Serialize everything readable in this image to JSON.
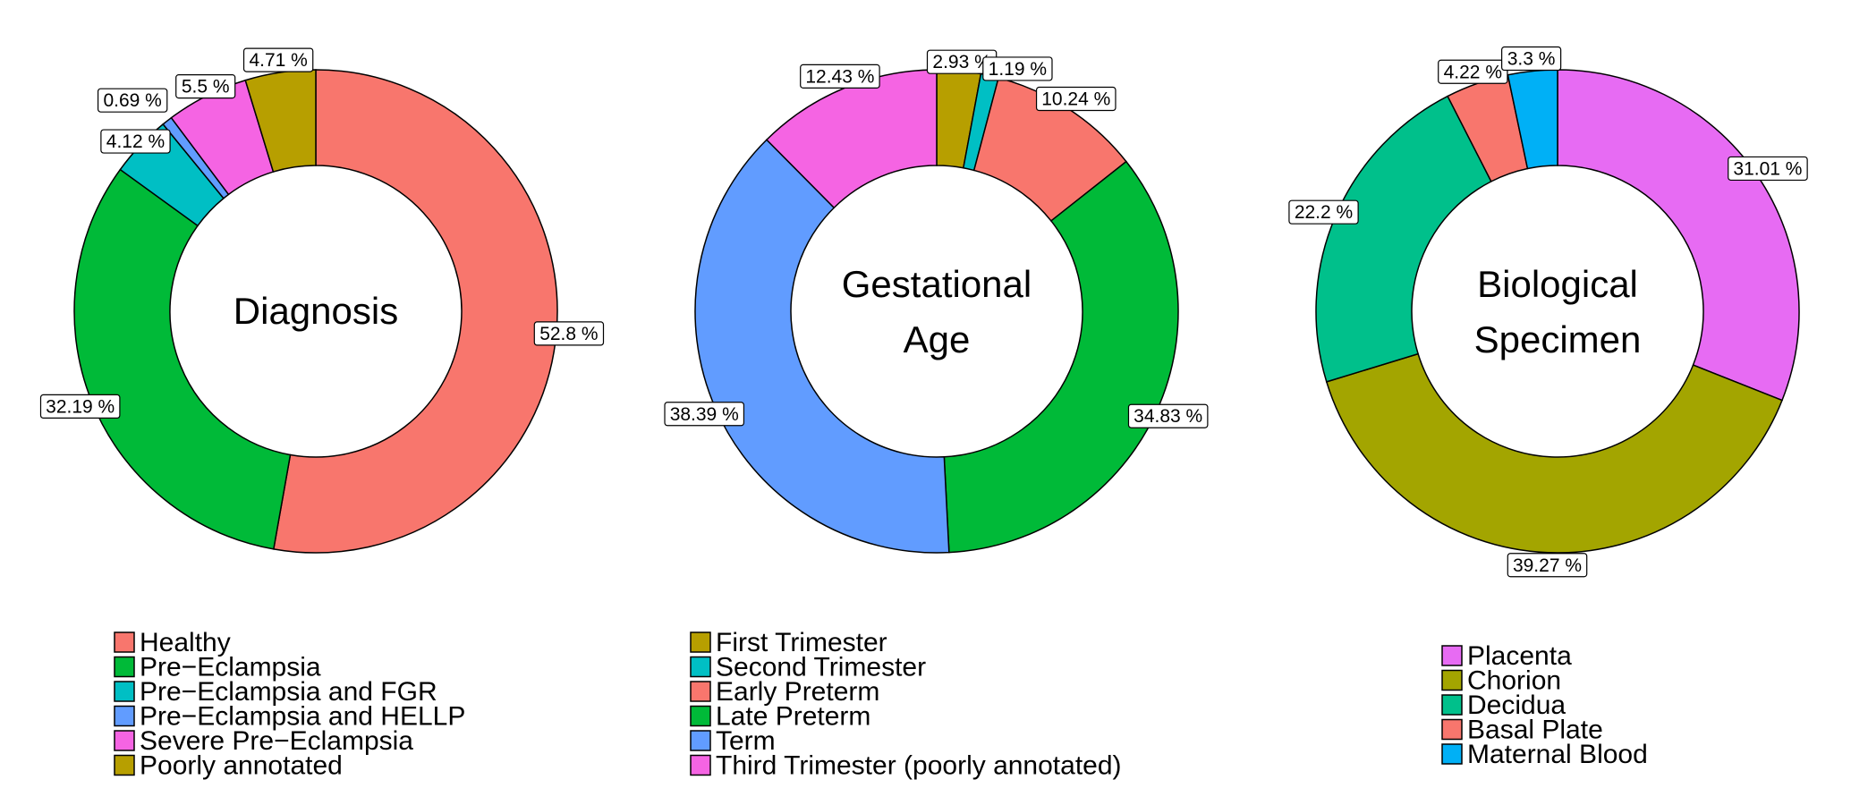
{
  "chart_data": [
    {
      "type": "pie",
      "title": "Diagnosis",
      "title_lines": [
        "Diagnosis"
      ],
      "slices": [
        {
          "label": "Healthy",
          "value": 52.8,
          "label_text": "52.8 %",
          "color": "#F8766D"
        },
        {
          "label": "Pre−Eclampsia",
          "value": 32.19,
          "label_text": "32.19 %",
          "color": "#00BA38"
        },
        {
          "label": "Pre−Eclampsia and FGR",
          "value": 4.12,
          "label_text": "4.12 %",
          "color": "#00BFC4"
        },
        {
          "label": "Pre−Eclampsia and HELLP",
          "value": 0.69,
          "label_text": "0.69 %",
          "color": "#619CFF"
        },
        {
          "label": "Severe Pre−Eclampsia",
          "value": 5.5,
          "label_text": "5.5 %",
          "color": "#F564E3"
        },
        {
          "label": "Poorly annotated",
          "value": 4.71,
          "label_text": "4.71 %",
          "color": "#B79F00"
        }
      ]
    },
    {
      "type": "pie",
      "title": "Gestational Age",
      "title_lines": [
        "Gestational",
        "Age"
      ],
      "slices": [
        {
          "label": "First Trimester",
          "value": 2.93,
          "label_text": "2.93 %",
          "color": "#B79F00"
        },
        {
          "label": "Second Trimester",
          "value": 1.19,
          "label_text": "1.19 %",
          "color": "#00BFC4"
        },
        {
          "label": "Early Preterm",
          "value": 10.24,
          "label_text": "10.24 %",
          "color": "#F8766D"
        },
        {
          "label": "Late Preterm",
          "value": 34.83,
          "label_text": "34.83 %",
          "color": "#00BA38"
        },
        {
          "label": "Term",
          "value": 38.39,
          "label_text": "38.39 %",
          "color": "#619CFF"
        },
        {
          "label": "Third Trimester (poorly annotated)",
          "value": 12.43,
          "label_text": "12.43 %",
          "color": "#F564E3"
        }
      ]
    },
    {
      "type": "pie",
      "title": "Biological Specimen",
      "title_lines": [
        "Biological",
        "Specimen"
      ],
      "slices": [
        {
          "label": "Placenta",
          "value": 31.01,
          "label_text": "31.01 %",
          "color": "#E76BF3"
        },
        {
          "label": "Chorion",
          "value": 39.27,
          "label_text": "39.27 %",
          "color": "#A3A500"
        },
        {
          "label": "Decidua",
          "value": 22.2,
          "label_text": "22.2 %",
          "color": "#00C08B"
        },
        {
          "label": "Basal Plate",
          "value": 4.22,
          "label_text": "4.22 %",
          "color": "#F8766D"
        },
        {
          "label": "Maternal Blood",
          "value": 3.3,
          "label_text": "3.3 %",
          "color": "#00B0F6"
        }
      ]
    }
  ],
  "legends": [
    {
      "entries": [
        {
          "label": "Healthy",
          "color": "#F8766D"
        },
        {
          "label": "Pre−Eclampsia",
          "color": "#00BA38"
        },
        {
          "label": "Pre−Eclampsia and FGR",
          "color": "#00BFC4"
        },
        {
          "label": "Pre−Eclampsia and HELLP",
          "color": "#619CFF"
        },
        {
          "label": "Severe Pre−Eclampsia",
          "color": "#F564E3"
        },
        {
          "label": "Poorly annotated",
          "color": "#B79F00"
        }
      ]
    },
    {
      "entries": [
        {
          "label": "First Trimester",
          "color": "#B79F00"
        },
        {
          "label": "Second Trimester",
          "color": "#00BFC4"
        },
        {
          "label": "Early Preterm",
          "color": "#F8766D"
        },
        {
          "label": "Late Preterm",
          "color": "#00BA38"
        },
        {
          "label": "Term",
          "color": "#619CFF"
        },
        {
          "label": "Third Trimester (poorly annotated)",
          "color": "#F564E3"
        }
      ]
    },
    {
      "entries": [
        {
          "label": "Placenta",
          "color": "#E76BF3"
        },
        {
          "label": "Chorion",
          "color": "#A3A500"
        },
        {
          "label": "Decidua",
          "color": "#00C08B"
        },
        {
          "label": "Basal Plate",
          "color": "#F8766D"
        },
        {
          "label": "Maternal Blood",
          "color": "#00B0F6"
        }
      ]
    }
  ]
}
